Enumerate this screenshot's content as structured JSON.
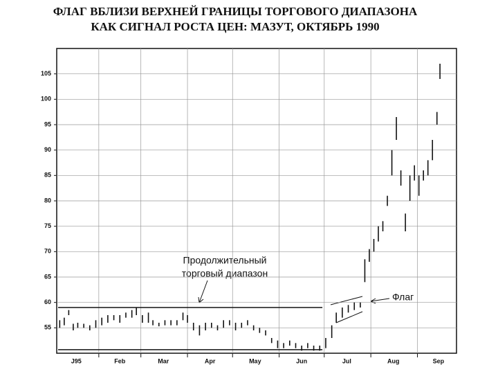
{
  "chart_data": {
    "type": "range_bars",
    "title": [
      "ФЛАГ ВБЛИЗИ ВЕРХНЕЙ ГРАНИЦЫ ТОРГОВОГО ДИАПАЗОНА",
      "КАК СИГНАЛ РОСТА ЦЕН: МАЗУТ, ОКТЯБРЬ 1990"
    ],
    "annotations": [
      "Продолжительный",
      "торговый диапазон",
      "Флаг"
    ],
    "x": [
      5,
      8,
      11,
      14,
      17,
      21,
      25,
      29,
      33,
      37,
      41,
      45,
      49,
      53,
      56,
      60,
      64,
      67,
      71,
      75,
      79,
      83,
      87,
      90,
      94,
      98,
      102,
      106,
      110,
      114,
      118,
      122,
      126,
      130,
      134,
      138,
      142,
      146,
      150,
      154,
      158,
      162,
      166,
      170,
      174,
      178,
      182,
      186,
      189,
      193,
      197,
      201,
      205,
      208,
      211,
      214,
      217,
      220,
      223,
      226,
      229,
      232,
      235,
      238,
      241,
      244,
      247,
      250,
      253,
      256,
      258
    ],
    "series": [
      {
        "name": "high",
        "values": [
          56.5,
          57,
          58.5,
          55.8,
          56,
          55.8,
          55.5,
          56.5,
          57,
          57.5,
          57.5,
          57.5,
          58,
          58.5,
          59,
          57.5,
          58,
          56.5,
          56,
          56.5,
          56.5,
          56.5,
          58,
          57.5,
          56,
          55.5,
          56,
          56,
          55.5,
          56.5,
          56.5,
          56,
          56,
          56.5,
          55.5,
          55,
          54.5,
          53,
          52.5,
          52,
          52.5,
          52,
          51.5,
          52,
          51.5,
          51.5,
          53,
          55.5,
          58,
          59,
          59.5,
          60,
          60,
          68.5,
          70.5,
          72.5,
          75,
          76,
          81,
          90,
          96.5,
          86,
          77.5,
          85,
          87,
          85,
          86,
          88,
          92,
          97.5,
          107
        ]
      },
      {
        "name": "low",
        "values": [
          55,
          55.5,
          57.5,
          54.5,
          55,
          55,
          54.5,
          55,
          55.5,
          56,
          56.5,
          56,
          57,
          57,
          57.5,
          56,
          56,
          55.5,
          55.3,
          55.5,
          55.5,
          55.5,
          56.5,
          56,
          54.5,
          53.5,
          54.5,
          55,
          54.5,
          55,
          55.5,
          54.5,
          55,
          55.5,
          54.5,
          54,
          53.5,
          52,
          51,
          51,
          51.5,
          51,
          50.5,
          51,
          50.5,
          50.5,
          51,
          53,
          56,
          57,
          58,
          58.5,
          59,
          64,
          68,
          70,
          72,
          74,
          79,
          85,
          92,
          83,
          74,
          80,
          84,
          81,
          84,
          85,
          88,
          95,
          104
        ]
      }
    ],
    "color": "#111111",
    "reference_lines": [
      59,
      50.7
    ],
    "xlim": [
      3,
      269
    ],
    "xticks": [
      {
        "value": 16,
        "label": "J95"
      },
      {
        "value": 45,
        "label": "Feb"
      },
      {
        "value": 74,
        "label": "Mar"
      },
      {
        "value": 105,
        "label": "Apr"
      },
      {
        "value": 135,
        "label": "May"
      },
      {
        "value": 166,
        "label": "Jun"
      },
      {
        "value": 196,
        "label": "Jul"
      },
      {
        "value": 227,
        "label": "Aug"
      },
      {
        "value": 257,
        "label": "Sep"
      }
    ],
    "xgrid": [
      31,
      59,
      90,
      120,
      151,
      181,
      212,
      243
    ],
    "ylim": [
      50,
      110
    ],
    "yticks": [
      55,
      60,
      65,
      70,
      75,
      80,
      85,
      90,
      95,
      100,
      105
    ],
    "grid": true
  }
}
